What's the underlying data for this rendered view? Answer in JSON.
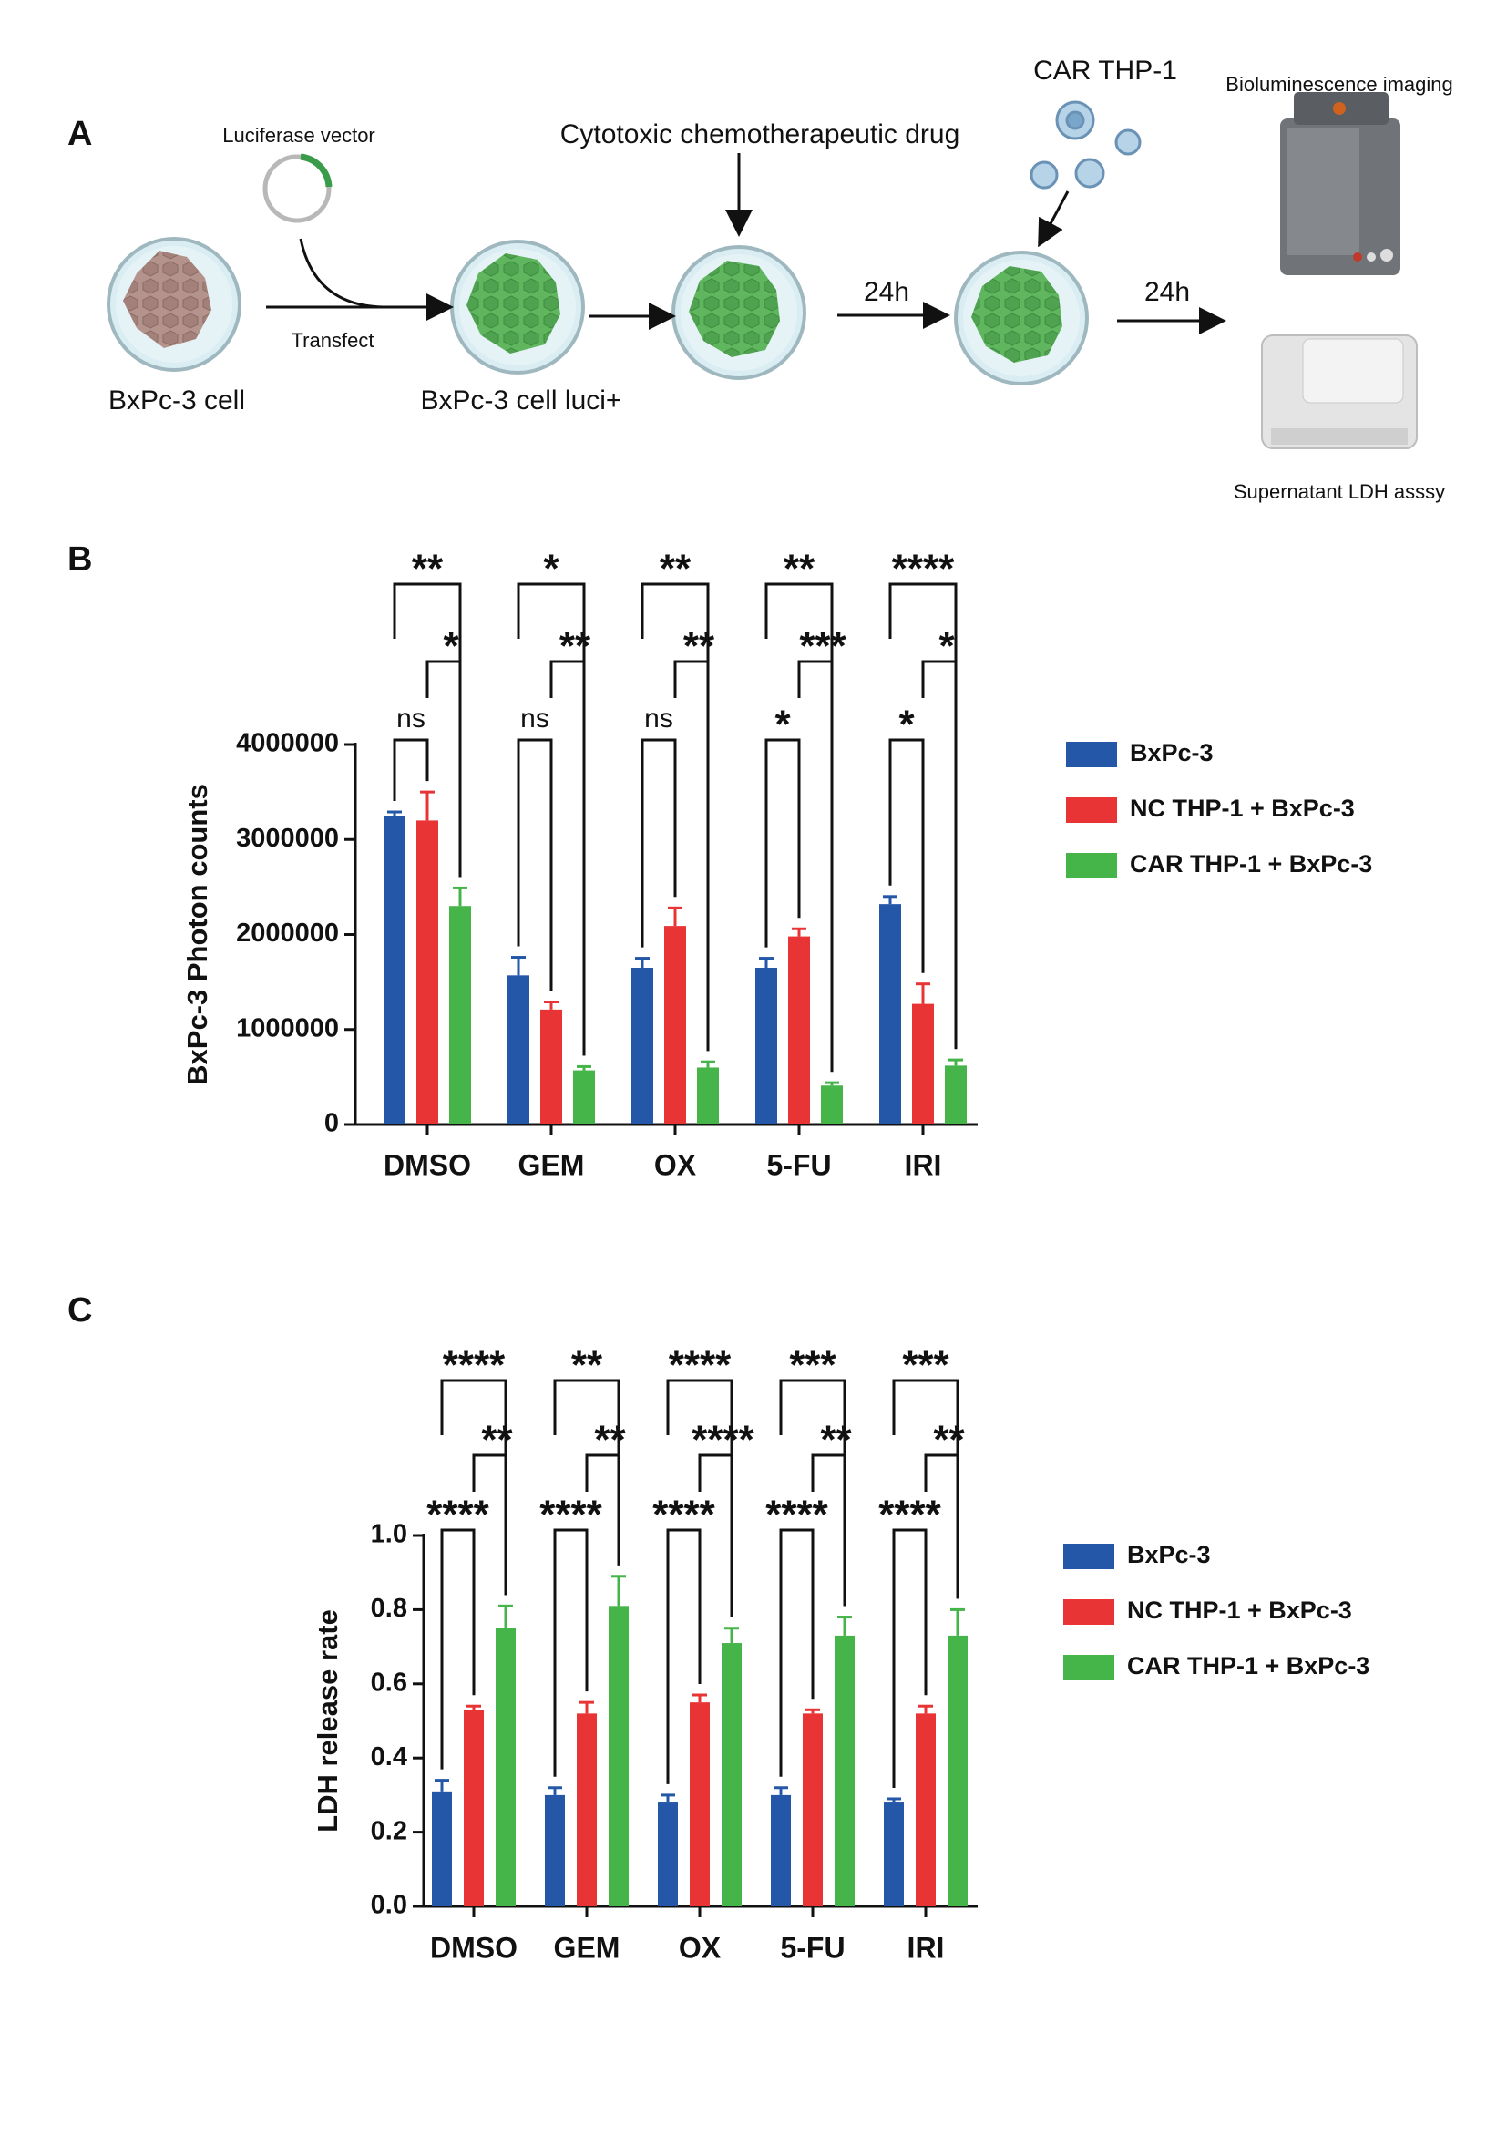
{
  "panel_labels": [
    "A",
    "B",
    "C"
  ],
  "diagram": {
    "luciferase_vector": "Luciferase vector",
    "transfect": "Transfect",
    "cell": "BxPc-3 cell",
    "cell_luci": "BxPc-3 cell luci+",
    "drug": "Cytotoxic chemotherapeutic drug",
    "time_1": "24h",
    "car_thp1": "CAR  THP-1",
    "time_2": "24h",
    "imaging": "Bioluminescence imaging",
    "ldh_assay": "Supernatant LDH asssy"
  },
  "chart_data": [
    {
      "type": "bar",
      "ylabel": "BxPc-3  Photon counts",
      "categories": [
        "DMSO",
        "GEM",
        "OX",
        "5-FU",
        "IRI"
      ],
      "series": [
        {
          "name": "BxPc-3",
          "color": "#2457a8",
          "values": [
            3250000,
            1570000,
            1650000,
            1650000,
            2320000
          ],
          "errors": [
            40000,
            190000,
            100000,
            100000,
            80000
          ]
        },
        {
          "name": "NC THP-1 + BxPc-3",
          "color": "#e83434",
          "values": [
            3200000,
            1210000,
            2090000,
            1980000,
            1270000
          ],
          "errors": [
            300000,
            80000,
            190000,
            80000,
            210000
          ]
        },
        {
          "name": "CAR THP-1 + BxPc-3",
          "color": "#45b449",
          "values": [
            2300000,
            570000,
            600000,
            410000,
            620000
          ],
          "errors": [
            190000,
            40000,
            60000,
            30000,
            60000
          ]
        }
      ],
      "ylim": [
        0,
        4000000
      ],
      "yticks": [
        0,
        1000000,
        2000000,
        3000000,
        4000000
      ],
      "significance": [
        {
          "top": "**",
          "middle": "*",
          "bottom": "ns"
        },
        {
          "top": "*",
          "middle": "**",
          "bottom": "ns"
        },
        {
          "top": "**",
          "middle": "**",
          "bottom": "ns"
        },
        {
          "top": "**",
          "middle": "***",
          "bottom": "*"
        },
        {
          "top": "****",
          "middle": "*",
          "bottom": "*"
        }
      ]
    },
    {
      "type": "bar",
      "ylabel": "LDH release rate",
      "categories": [
        "DMSO",
        "GEM",
        "OX",
        "5-FU",
        "IRI"
      ],
      "series": [
        {
          "name": "BxPc-3",
          "color": "#2457a8",
          "values": [
            0.31,
            0.3,
            0.28,
            0.3,
            0.28
          ],
          "errors": [
            0.03,
            0.02,
            0.02,
            0.02,
            0.01
          ]
        },
        {
          "name": "NC THP-1 + BxPc-3",
          "color": "#e83434",
          "values": [
            0.53,
            0.52,
            0.55,
            0.52,
            0.52
          ],
          "errors": [
            0.01,
            0.03,
            0.02,
            0.01,
            0.02
          ]
        },
        {
          "name": "CAR THP-1 + BxPc-3",
          "color": "#45b449",
          "values": [
            0.75,
            0.81,
            0.71,
            0.73,
            0.73
          ],
          "errors": [
            0.06,
            0.08,
            0.04,
            0.05,
            0.07
          ]
        }
      ],
      "ylim": [
        0,
        1
      ],
      "yticks": [
        {
          "value": 0,
          "label": "0.0"
        },
        0.2,
        0.4,
        0.6,
        0.8,
        {
          "value": 1,
          "label": "1.0"
        }
      ],
      "significance": [
        {
          "top": "****",
          "middle": "**",
          "bottom": "****"
        },
        {
          "top": "**",
          "middle": "**",
          "bottom": "****"
        },
        {
          "top": "****",
          "middle": "****",
          "bottom": "****"
        },
        {
          "top": "***",
          "middle": "**",
          "bottom": "****"
        },
        {
          "top": "***",
          "middle": "**",
          "bottom": "****"
        }
      ]
    }
  ]
}
